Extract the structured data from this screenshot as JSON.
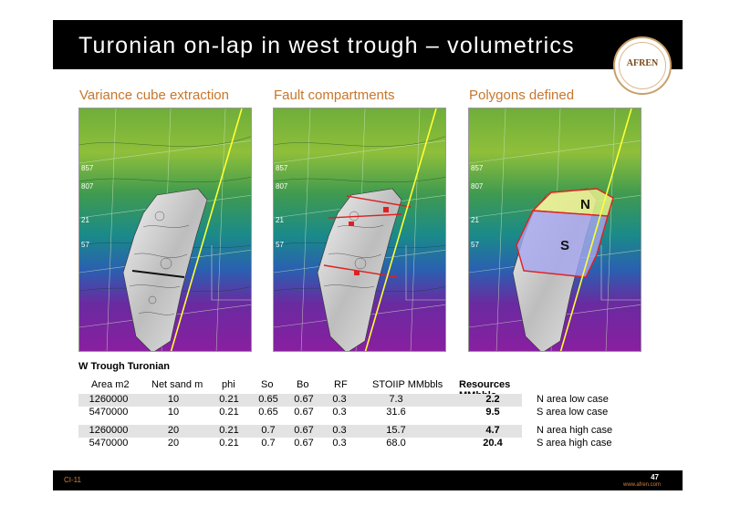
{
  "slide": {
    "title": "Turonian on-lap in west trough – volumetrics",
    "logo_text": "AFREN",
    "footer_code": "CI-11",
    "page_number": "47",
    "website": "www.afren.com"
  },
  "panels": [
    {
      "label": "Variance cube extraction"
    },
    {
      "label": "Fault compartments"
    },
    {
      "label": "Polygons defined"
    }
  ],
  "map_labels": [
    "857",
    "807",
    "21",
    "57"
  ],
  "polygon_labels": {
    "north": "N",
    "south": "S"
  },
  "table": {
    "title": "W Trough Turonian",
    "headers": [
      "Area m2",
      "Net sand m",
      "phi",
      "So",
      "Bo",
      "RF",
      "STOIIP MMbbls",
      "Resources MMbbls"
    ],
    "rows": [
      {
        "cells": [
          "1260000",
          "10",
          "0.21",
          "0.65",
          "0.67",
          "0.3",
          "7.3",
          "2.2"
        ],
        "case": "N area low case"
      },
      {
        "cells": [
          "5470000",
          "10",
          "0.21",
          "0.65",
          "0.67",
          "0.3",
          "31.6",
          "9.5"
        ],
        "case": "S area low case"
      },
      {
        "cells": [
          "1260000",
          "20",
          "0.21",
          "0.7",
          "0.67",
          "0.3",
          "15.7",
          "4.7"
        ],
        "case": "N area high case"
      },
      {
        "cells": [
          "5470000",
          "20",
          "0.21",
          "0.7",
          "0.67",
          "0.3",
          "68.0",
          "20.4"
        ],
        "case": "S area high case"
      }
    ]
  },
  "colors": {
    "accent": "#c7762c",
    "header_bg": "#000000",
    "north_polygon": "#e6f08a",
    "south_polygon": "#a6a6f0",
    "fault_line": "#e02020",
    "well_track": "#ffff33"
  }
}
